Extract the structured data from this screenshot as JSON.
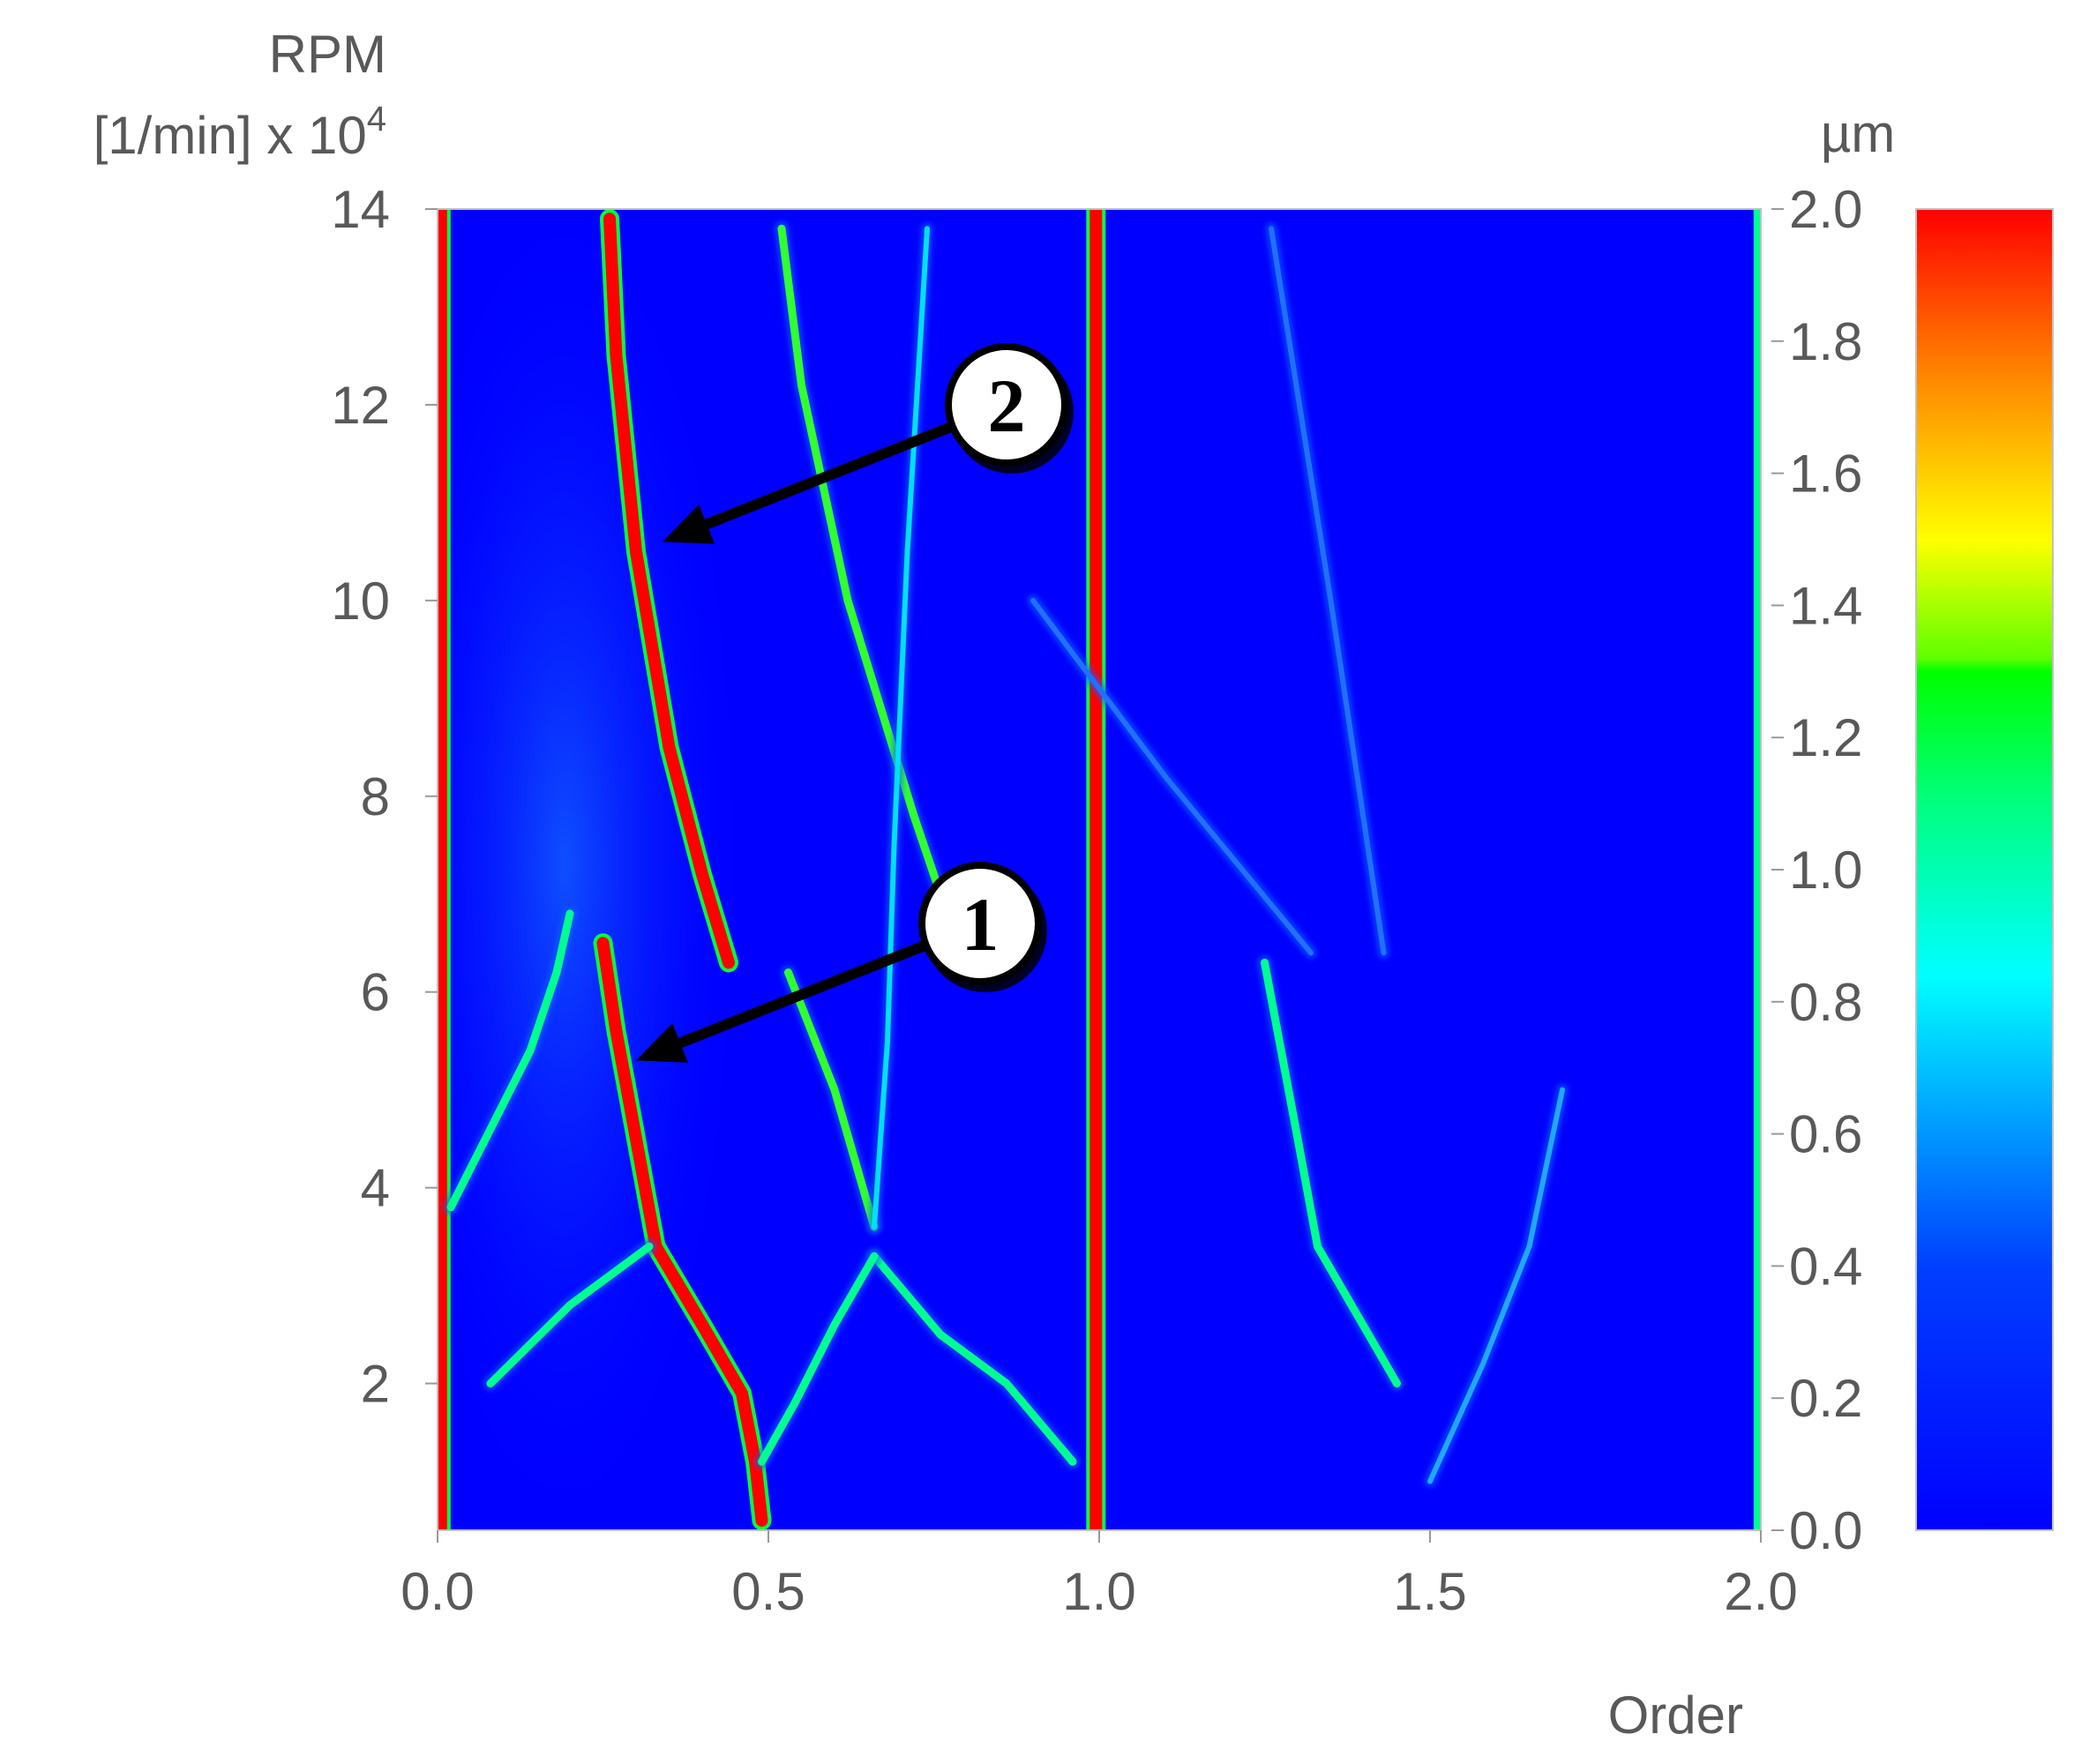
{
  "chart_data": {
    "type": "heatmap",
    "title": "",
    "xlabel": "Order",
    "ylabel_line1": "RPM",
    "ylabel_line2_prefix": "[1/min] x 10",
    "ylabel_exponent": "4",
    "xlim": [
      0.0,
      2.0
    ],
    "ylim": [
      0.5,
      14
    ],
    "x_ticks": [
      0.0,
      0.5,
      1.0,
      1.5,
      2.0
    ],
    "x_tick_labels": [
      "0.0",
      "0.5",
      "1.0",
      "1.5",
      "2.0"
    ],
    "y_ticks": [
      2,
      4,
      6,
      8,
      10,
      12,
      14
    ],
    "y_tick_labels": [
      "2",
      "4",
      "6",
      "8",
      "10",
      "12",
      "14"
    ],
    "colorbar": {
      "unit": "µm",
      "range": [
        0.0,
        2.0
      ],
      "ticks": [
        0.0,
        0.2,
        0.4,
        0.6,
        0.8,
        1.0,
        1.2,
        1.4,
        1.6,
        1.8,
        2.0
      ],
      "tick_labels": [
        "0.0",
        "0.2",
        "0.4",
        "0.6",
        "0.8",
        "1.0",
        "1.2",
        "1.4",
        "1.6",
        "1.8",
        "2.0"
      ],
      "colors": [
        "#0000ff",
        "#00ffff",
        "#00ff00",
        "#ffff00",
        "#ff0000"
      ]
    },
    "background_color": "#0000ff",
    "features": [
      {
        "name": "order-0-line",
        "amplitude": 2.0,
        "points": [
          [
            0.005,
            0.5
          ],
          [
            0.005,
            14
          ]
        ]
      },
      {
        "name": "order-1-line",
        "amplitude": 2.0,
        "points": [
          [
            0.995,
            0.5
          ],
          [
            0.995,
            14
          ]
        ]
      },
      {
        "name": "order-2-line",
        "amplitude": 1.1,
        "points": [
          [
            1.995,
            0.5
          ],
          [
            1.995,
            14
          ]
        ]
      },
      {
        "name": "whirl-1",
        "amplitude": 2.0,
        "points": [
          [
            0.25,
            6.5
          ],
          [
            0.27,
            5.6
          ],
          [
            0.3,
            4.5
          ],
          [
            0.33,
            3.4
          ],
          [
            0.4,
            2.6
          ],
          [
            0.46,
            1.9
          ],
          [
            0.48,
            1.2
          ],
          [
            0.49,
            0.6
          ]
        ]
      },
      {
        "name": "whirl-2",
        "amplitude": 2.0,
        "points": [
          [
            0.26,
            13.9
          ],
          [
            0.27,
            12.5
          ],
          [
            0.3,
            10.5
          ],
          [
            0.35,
            8.5
          ],
          [
            0.4,
            7.2
          ],
          [
            0.44,
            6.3
          ]
        ]
      },
      {
        "name": "falling-branch-a",
        "amplitude": 1.2,
        "points": [
          [
            0.52,
            13.8
          ],
          [
            0.55,
            12.2
          ],
          [
            0.62,
            10.0
          ],
          [
            0.72,
            7.8
          ],
          [
            0.78,
            6.6
          ]
        ]
      },
      {
        "name": "v-branch-left",
        "amplitude": 1.2,
        "points": [
          [
            0.53,
            6.2
          ],
          [
            0.6,
            5.0
          ],
          [
            0.66,
            3.6
          ]
        ]
      },
      {
        "name": "v-branch-right",
        "amplitude": 0.7,
        "points": [
          [
            0.74,
            13.8
          ],
          [
            0.71,
            10.5
          ],
          [
            0.69,
            7.5
          ],
          [
            0.68,
            5.5
          ],
          [
            0.66,
            3.6
          ]
        ]
      },
      {
        "name": "falling-branch-b",
        "amplitude": 1.1,
        "points": [
          [
            0.66,
            3.3
          ],
          [
            0.76,
            2.5
          ],
          [
            0.86,
            2.0
          ],
          [
            0.96,
            1.2
          ]
        ]
      },
      {
        "name": "rising-branch-b",
        "amplitude": 1.1,
        "points": [
          [
            0.49,
            1.2
          ],
          [
            0.54,
            1.8
          ],
          [
            0.6,
            2.6
          ],
          [
            0.66,
            3.3
          ]
        ]
      },
      {
        "name": "rising-branch-a",
        "amplitude": 1.0,
        "points": [
          [
            0.02,
            3.8
          ],
          [
            0.08,
            4.6
          ],
          [
            0.14,
            5.4
          ],
          [
            0.18,
            6.2
          ],
          [
            0.2,
            6.8
          ]
        ]
      },
      {
        "name": "rising-branch-c",
        "amplitude": 0.9,
        "points": [
          [
            0.08,
            2.0
          ],
          [
            0.2,
            2.8
          ],
          [
            0.32,
            3.4
          ]
        ]
      },
      {
        "name": "high-order-falling",
        "amplitude": 0.9,
        "points": [
          [
            1.25,
            6.3
          ],
          [
            1.3,
            4.5
          ],
          [
            1.33,
            3.4
          ],
          [
            1.45,
            2.0
          ]
        ]
      },
      {
        "name": "high-order-rising",
        "amplitude": 0.4,
        "points": [
          [
            1.5,
            1.0
          ],
          [
            1.58,
            2.2
          ],
          [
            1.65,
            3.4
          ],
          [
            1.7,
            5.0
          ]
        ]
      },
      {
        "name": "faint-diagonal-1",
        "amplitude": 0.3,
        "points": [
          [
            0.9,
            10.0
          ],
          [
            1.1,
            8.2
          ],
          [
            1.32,
            6.4
          ]
        ]
      },
      {
        "name": "faint-diagonal-2",
        "amplitude": 0.25,
        "points": [
          [
            1.26,
            13.8
          ],
          [
            1.35,
            10.0
          ],
          [
            1.43,
            6.4
          ]
        ]
      }
    ],
    "annotations": [
      {
        "label": "2",
        "target": [
          0.34,
          10.6
        ],
        "bubble": [
          0.86,
          12.0
        ]
      },
      {
        "label": "1",
        "target": [
          0.3,
          5.3
        ],
        "bubble": [
          0.82,
          6.7
        ]
      }
    ]
  }
}
